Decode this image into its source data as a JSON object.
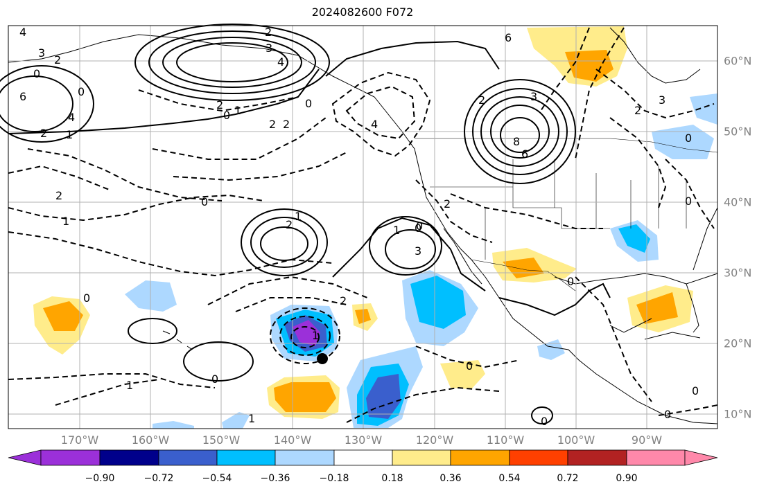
{
  "title": "2024082600 F072",
  "longitude_labels": [
    "170°W",
    "160°W",
    "150°W",
    "140°W",
    "130°W",
    "120°W",
    "110°W",
    "100°W",
    "90°W"
  ],
  "latitude_labels": [
    "60°N",
    "50°N",
    "40°N",
    "30°N",
    "20°N",
    "10°N"
  ],
  "colorbar": {
    "tick_labels": [
      "−0.90",
      "−0.72",
      "−0.54",
      "−0.36",
      "−0.18",
      "0.18",
      "0.36",
      "0.54",
      "0.72",
      "0.90"
    ],
    "colors": [
      "#9b30d9",
      "#00008b",
      "#3a5fcd",
      "#00bfff",
      "#add8ff",
      "#ffffff",
      "#ffec8b",
      "#ffa500",
      "#ff4000",
      "#b22222",
      "#ff88aa"
    ]
  },
  "contour_labels": [
    "4",
    "3",
    "2",
    "0",
    "6",
    "4",
    "2",
    "1",
    "0",
    "2",
    "3",
    "4",
    "2",
    "0",
    "1",
    "2",
    "2",
    "6",
    "8",
    "2",
    "3",
    "6",
    "2",
    "0",
    "3",
    "0",
    "4",
    "2",
    "0",
    "0",
    "1",
    "2",
    "1",
    "2",
    "0",
    "1",
    "3",
    "0",
    "2",
    "1",
    "0",
    "1",
    "0",
    "0",
    "0",
    "0",
    "0",
    "0",
    "1"
  ],
  "marker": {
    "name": "storm-center"
  }
}
